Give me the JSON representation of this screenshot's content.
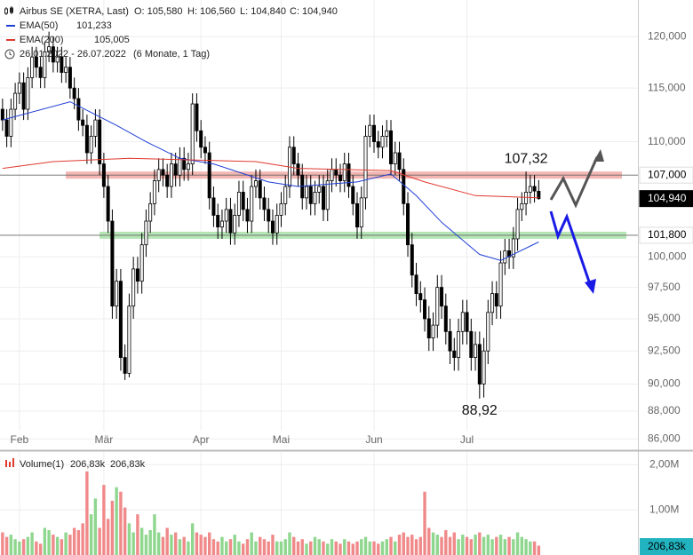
{
  "chart_data": {
    "type": "candlestick",
    "title": "Airbus SE (XETRA, Last)",
    "ohlc_labels": [
      "O: 105,580",
      "H: 106,560",
      "L: 104,840",
      "C: 104,940"
    ],
    "period": "26.01.2022 - 26.07.2022",
    "period_note": "(6 Monate, 1 Tag)",
    "log_scale": true,
    "grid": true,
    "xlim": [
      -0.6,
      150.5
    ],
    "ylim": [
      85.2,
      123.7
    ],
    "yticks": [
      {
        "value": 86,
        "label": "86,000"
      },
      {
        "value": 88,
        "label": "88,000"
      },
      {
        "value": 90,
        "label": "90,000"
      },
      {
        "value": 92.5,
        "label": "92,500"
      },
      {
        "value": 95,
        "label": "95,000"
      },
      {
        "value": 97.5,
        "label": "97,500"
      },
      {
        "value": 100,
        "label": "100,000"
      },
      {
        "value": 110,
        "label": "110,000"
      },
      {
        "value": 115,
        "label": "115,000"
      },
      {
        "value": 120,
        "label": "120,000"
      }
    ],
    "xticks": [
      {
        "value": 4,
        "label": "Feb"
      },
      {
        "value": 24,
        "label": "Mär"
      },
      {
        "value": 47,
        "label": "Apr"
      },
      {
        "value": 66,
        "label": "Mai"
      },
      {
        "value": 88,
        "label": "Jun"
      },
      {
        "value": 110,
        "label": "Jul"
      }
    ],
    "up_color": "#ffffff",
    "down_color": "#000000",
    "open": [
      113,
      112,
      110.5,
      113,
      114.5,
      115.5,
      113,
      116,
      118,
      117,
      116,
      118.5,
      119,
      117.5,
      118,
      116.5,
      117,
      115,
      114,
      112,
      111.5,
      109,
      110.5,
      112,
      108,
      106,
      103,
      96,
      98,
      92,
      90.8,
      96,
      99,
      98,
      101,
      103,
      104.5,
      106.5,
      107.5,
      107,
      106,
      108,
      107,
      108.5,
      107.5,
      108,
      113.5,
      111,
      109.5,
      109,
      105,
      103.5,
      102.5,
      103,
      104,
      102,
      103.5,
      105.5,
      104,
      103,
      106,
      106.5,
      105,
      104,
      103,
      102,
      103.5,
      104.5,
      106,
      109.5,
      108,
      107,
      105,
      106,
      104.5,
      105.5,
      106,
      104,
      106.5,
      107.5,
      107,
      106.5,
      108,
      106,
      104.5,
      102.5,
      105,
      110.5,
      111.5,
      110,
      109.5,
      110.5,
      111,
      108,
      109,
      107.5,
      104.5,
      101,
      98.5,
      97,
      96.5,
      95,
      93.5,
      94.5,
      97.5,
      96,
      94,
      92.5,
      92,
      94,
      95.5,
      94,
      92,
      93,
      90,
      92.5,
      95.5,
      97,
      96,
      99.5,
      100.5,
      100,
      101.5,
      104,
      104.5,
      105.5,
      106,
      105.58
    ],
    "high": [
      114,
      113,
      114,
      115.5,
      116.5,
      116.5,
      117,
      119,
      119,
      118,
      119.5,
      120.5,
      120,
      119,
      119,
      118,
      118,
      116,
      115,
      113,
      112.5,
      111.5,
      113,
      113,
      109,
      107,
      104,
      99,
      99,
      93,
      97,
      100,
      100,
      102,
      104,
      105.5,
      107.5,
      108.5,
      108.5,
      108,
      109,
      109,
      109.5,
      109.5,
      109,
      114.5,
      114.5,
      112,
      110.5,
      110,
      106,
      104.5,
      104,
      105,
      105,
      104.5,
      106.5,
      106.5,
      105,
      107,
      107.5,
      107.5,
      106,
      105,
      104,
      104.5,
      105.5,
      107,
      110.5,
      110.5,
      109,
      108,
      107,
      107,
      106.5,
      107,
      107,
      107.5,
      108.5,
      108.5,
      108,
      109,
      109,
      107,
      105.5,
      106,
      111.5,
      112.5,
      112.5,
      111,
      111.5,
      112,
      112,
      110,
      110,
      108.5,
      105.5,
      102,
      99.5,
      98,
      97.5,
      96,
      95.5,
      98.5,
      98.5,
      97,
      95,
      93.5,
      95,
      96.5,
      96.5,
      95,
      94,
      94,
      93.5,
      96.5,
      98,
      98,
      100.5,
      101.5,
      101.5,
      102.5,
      105,
      105.5,
      107.32,
      107,
      107,
      106.56
    ],
    "low": [
      111,
      109.5,
      109.5,
      112,
      113.5,
      112,
      112,
      115,
      116,
      115,
      115,
      117.5,
      116.5,
      116.5,
      115.5,
      115.5,
      114,
      113,
      111,
      110.5,
      108,
      108,
      109.5,
      107,
      105,
      102,
      95,
      95,
      91,
      90.3,
      90.5,
      95,
      97,
      97,
      100,
      102,
      103.5,
      105.5,
      106,
      105,
      105,
      106,
      106,
      106.5,
      106.5,
      107,
      110,
      108.5,
      108,
      104,
      102.5,
      101.5,
      101.5,
      102,
      101,
      101,
      102.5,
      103,
      102,
      102,
      105,
      104,
      103,
      102,
      101,
      101,
      102.5,
      103.5,
      105,
      107,
      106,
      104,
      104,
      103.5,
      103.5,
      104.5,
      103,
      103,
      105.5,
      106,
      105.5,
      105.5,
      105,
      103.5,
      101.5,
      101.5,
      104,
      109.5,
      109,
      108.5,
      108.5,
      109.5,
      107,
      107,
      106.5,
      103.5,
      100,
      97.5,
      96,
      95.5,
      94,
      92.5,
      92.5,
      93.5,
      95,
      93,
      91.5,
      91,
      91,
      93,
      93,
      91,
      91,
      88.92,
      89,
      91.5,
      94.5,
      95,
      95,
      98.5,
      99,
      99,
      100.5,
      103,
      103.5,
      104.5,
      104.6,
      104.84
    ],
    "close": [
      112,
      110.5,
      113,
      114.5,
      115.5,
      113,
      116,
      118,
      117,
      116,
      118.5,
      119,
      117.5,
      118,
      116.5,
      117,
      115,
      114,
      112,
      111.5,
      109,
      110.5,
      112,
      108,
      106,
      103,
      96,
      98,
      92,
      90.8,
      96,
      99,
      98,
      101,
      103,
      104.5,
      106.5,
      107.5,
      107,
      106,
      108,
      107,
      108.5,
      107.5,
      108,
      113.5,
      111,
      109.5,
      109,
      105,
      103.5,
      102.5,
      103,
      104,
      102,
      103.5,
      105.5,
      104,
      103,
      106,
      106.5,
      105,
      104,
      103,
      102,
      103.5,
      104.5,
      106,
      109.5,
      108,
      107,
      105,
      106,
      104.5,
      105.5,
      106,
      104,
      106.5,
      107.5,
      107,
      106.5,
      108,
      106,
      104.5,
      102.5,
      105,
      110.5,
      111.5,
      110,
      109.5,
      110.5,
      111,
      108,
      109,
      107.5,
      104.5,
      101,
      98.5,
      97,
      96.5,
      95,
      93.5,
      94.5,
      97.5,
      96,
      94,
      92.5,
      92,
      94,
      95.5,
      94,
      92,
      93,
      90,
      92.5,
      95.5,
      97,
      96,
      99.5,
      100.5,
      100,
      101.5,
      104,
      104.5,
      105.5,
      106,
      105.6,
      104.94
    ],
    "series": [
      {
        "name": "EMA(50)",
        "value_label": "101,233",
        "color": "#1f3fd6",
        "x": [
          0,
          16,
          27,
          34,
          42,
          50,
          63,
          70,
          84,
          92,
          98,
          104,
          113,
          118,
          127
        ],
        "values": [
          112,
          113.7,
          111.5,
          110,
          108.5,
          108,
          106.4,
          106,
          106.4,
          107.1,
          105.2,
          102.9,
          100.2,
          99.7,
          101.233
        ]
      },
      {
        "name": "EMA(200)",
        "value_label": "105,005",
        "color": "#e0392e",
        "x": [
          0,
          12,
          30,
          60,
          70,
          92,
          100,
          112,
          127
        ],
        "values": [
          107.6,
          108.2,
          108.5,
          108.2,
          107.6,
          107.4,
          106.4,
          105.2,
          105.005
        ]
      }
    ],
    "price_markers": [
      {
        "value": 107,
        "label": "107,000",
        "line": true,
        "band": "#f2a9a4",
        "box": "#ffffff"
      },
      {
        "value": 104.94,
        "label": "104,940",
        "box": "#000000"
      },
      {
        "value": 101.8,
        "label": "101,800",
        "line": true,
        "band": "#a9e2a9",
        "box": "#ffffff"
      }
    ],
    "annotations": [
      {
        "text": "107,32",
        "value": 107.32,
        "index": 124,
        "position": "above"
      },
      {
        "text": "88,92",
        "value": 88.92,
        "index": 113,
        "position": "below"
      }
    ],
    "volume": {
      "name": "Volume(1)",
      "legend_labels": [
        "206,83k",
        "206,83k"
      ],
      "legend_colors": [
        "#e0392e",
        "#2a9db0"
      ],
      "last_label": "206,83k",
      "up_color": "#8fd68f",
      "down_color": "#f08a8a",
      "ylim": [
        0,
        2.22
      ],
      "yticks": [
        {
          "value": 1,
          "label": "1,00M"
        },
        {
          "value": 2,
          "label": "2,00M"
        }
      ],
      "values": [
        0.5,
        0.4,
        0.45,
        0.35,
        0.3,
        0.35,
        0.4,
        0.5,
        0.3,
        0.25,
        0.6,
        0.55,
        0.45,
        0.4,
        0.35,
        0.5,
        0.45,
        0.6,
        0.55,
        0.7,
        1.85,
        0.9,
        1.25,
        0.6,
        1.55,
        0.8,
        1.2,
        1.5,
        1.4,
        1.05,
        0.7,
        0.5,
        0.9,
        0.6,
        0.45,
        0.55,
        0.9,
        0.5,
        0.4,
        0.6,
        0.45,
        0.5,
        0.35,
        0.4,
        0.3,
        0.7,
        0.5,
        0.45,
        0.4,
        0.5,
        0.35,
        0.3,
        0.4,
        0.3,
        0.35,
        0.45,
        0.3,
        0.25,
        0.35,
        0.5,
        0.3,
        0.4,
        0.35,
        0.3,
        0.45,
        0.3,
        0.3,
        0.35,
        0.5,
        0.4,
        0.3,
        0.35,
        0.25,
        0.3,
        0.4,
        0.35,
        0.3,
        0.25,
        0.35,
        0.3,
        0.25,
        0.35,
        0.3,
        0.25,
        0.3,
        0.35,
        0.4,
        0.3,
        0.3,
        0.25,
        0.3,
        0.35,
        0.4,
        0.3,
        0.45,
        0.5,
        0.4,
        0.45,
        0.35,
        0.4,
        1.4,
        0.6,
        0.5,
        0.45,
        0.4,
        0.55,
        0.4,
        0.5,
        0.35,
        0.45,
        0.4,
        0.35,
        0.45,
        0.5,
        0.4,
        0.45,
        0.35,
        0.4,
        0.45,
        0.35,
        0.4,
        0.35,
        0.5,
        0.4,
        0.35,
        0.3,
        0.3,
        0.20683
      ]
    }
  }
}
